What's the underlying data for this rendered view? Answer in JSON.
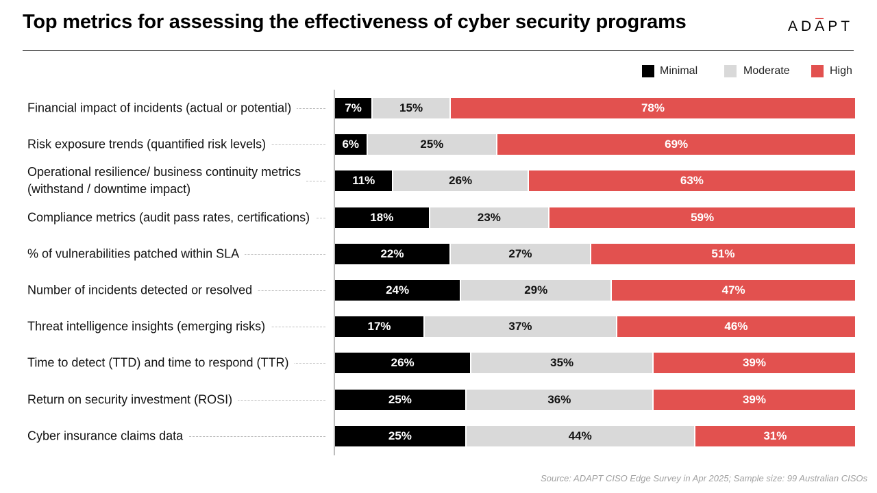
{
  "title": "Top metrics for assessing the effectiveness of cyber security programs",
  "logo": {
    "part1": "ADA",
    "part2": "PT"
  },
  "source": "Source: ADAPT CISO Edge Survey in Apr 2025; Sample size: 99 Australian CISOs",
  "colors": {
    "minimal": "#000000",
    "moderate": "#d9d9d9",
    "high": "#e2514f"
  },
  "chart_data": {
    "type": "bar",
    "orientation": "horizontal",
    "stacked": true,
    "normalized": true,
    "legend_position": "top-right",
    "categories": [
      [
        "Financial impact of incidents (actual or potential)"
      ],
      [
        "Risk exposure trends (quantified risk levels)"
      ],
      [
        "Operational resilience/ business continuity metrics",
        "(withstand / downtime impact)"
      ],
      [
        "Compliance metrics (audit pass rates, certifications)"
      ],
      [
        "% of vulnerabilities patched within SLA"
      ],
      [
        "Number of incidents detected or resolved"
      ],
      [
        "Threat intelligence insights (emerging risks)"
      ],
      [
        "Time to detect (TTD) and time to respond (TTR)"
      ],
      [
        "Return on security investment (ROSI)"
      ],
      [
        "Cyber insurance claims data"
      ]
    ],
    "series": [
      {
        "name": "Minimal",
        "values": [
          7,
          6,
          11,
          18,
          22,
          24,
          17,
          26,
          25,
          25
        ]
      },
      {
        "name": "Moderate",
        "values": [
          15,
          25,
          26,
          23,
          27,
          29,
          37,
          35,
          36,
          44
        ]
      },
      {
        "name": "High",
        "values": [
          78,
          69,
          63,
          59,
          51,
          47,
          46,
          39,
          39,
          31
        ]
      }
    ],
    "value_suffix": "%"
  }
}
